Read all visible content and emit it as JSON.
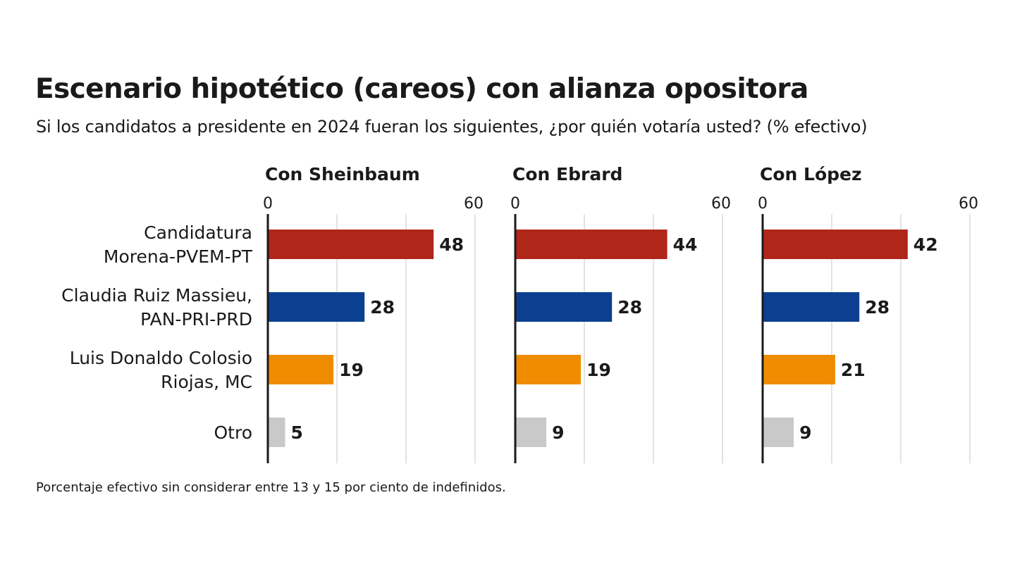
{
  "header": {
    "title": "Escenario hipotético (careos) con alianza opositora",
    "subtitle": "Si los candidatos a presidente en 2024 fueran los siguientes, ¿por quién votaría usted?  (% efectivo)"
  },
  "footnote": "Porcentaje efectivo sin considerar entre 13 y 15 por ciento de indefinidos.",
  "chart_data": {
    "type": "bar",
    "orientation": "horizontal",
    "categories": [
      [
        "Candidatura",
        "Morena-PVEM-PT"
      ],
      [
        "Claudia Ruiz Massieu,",
        "PAN-PRI-PRD"
      ],
      [
        "Luis Donaldo Colosio",
        "Riojas, MC"
      ],
      [
        "Otro"
      ]
    ],
    "category_colors": [
      "#b0271a",
      "#0b3f8f",
      "#f08c00",
      "#c9c9c9"
    ],
    "xlim": [
      0,
      60
    ],
    "tick_labels": [
      "0",
      "60"
    ],
    "gridlines": [
      0,
      20,
      40,
      60
    ],
    "panels": [
      {
        "title": "Con Sheinbaum",
        "values": [
          48,
          28,
          19,
          5
        ]
      },
      {
        "title": "Con Ebrard",
        "values": [
          44,
          28,
          19,
          9
        ]
      },
      {
        "title": "Con López",
        "values": [
          42,
          28,
          21,
          9
        ]
      }
    ]
  }
}
